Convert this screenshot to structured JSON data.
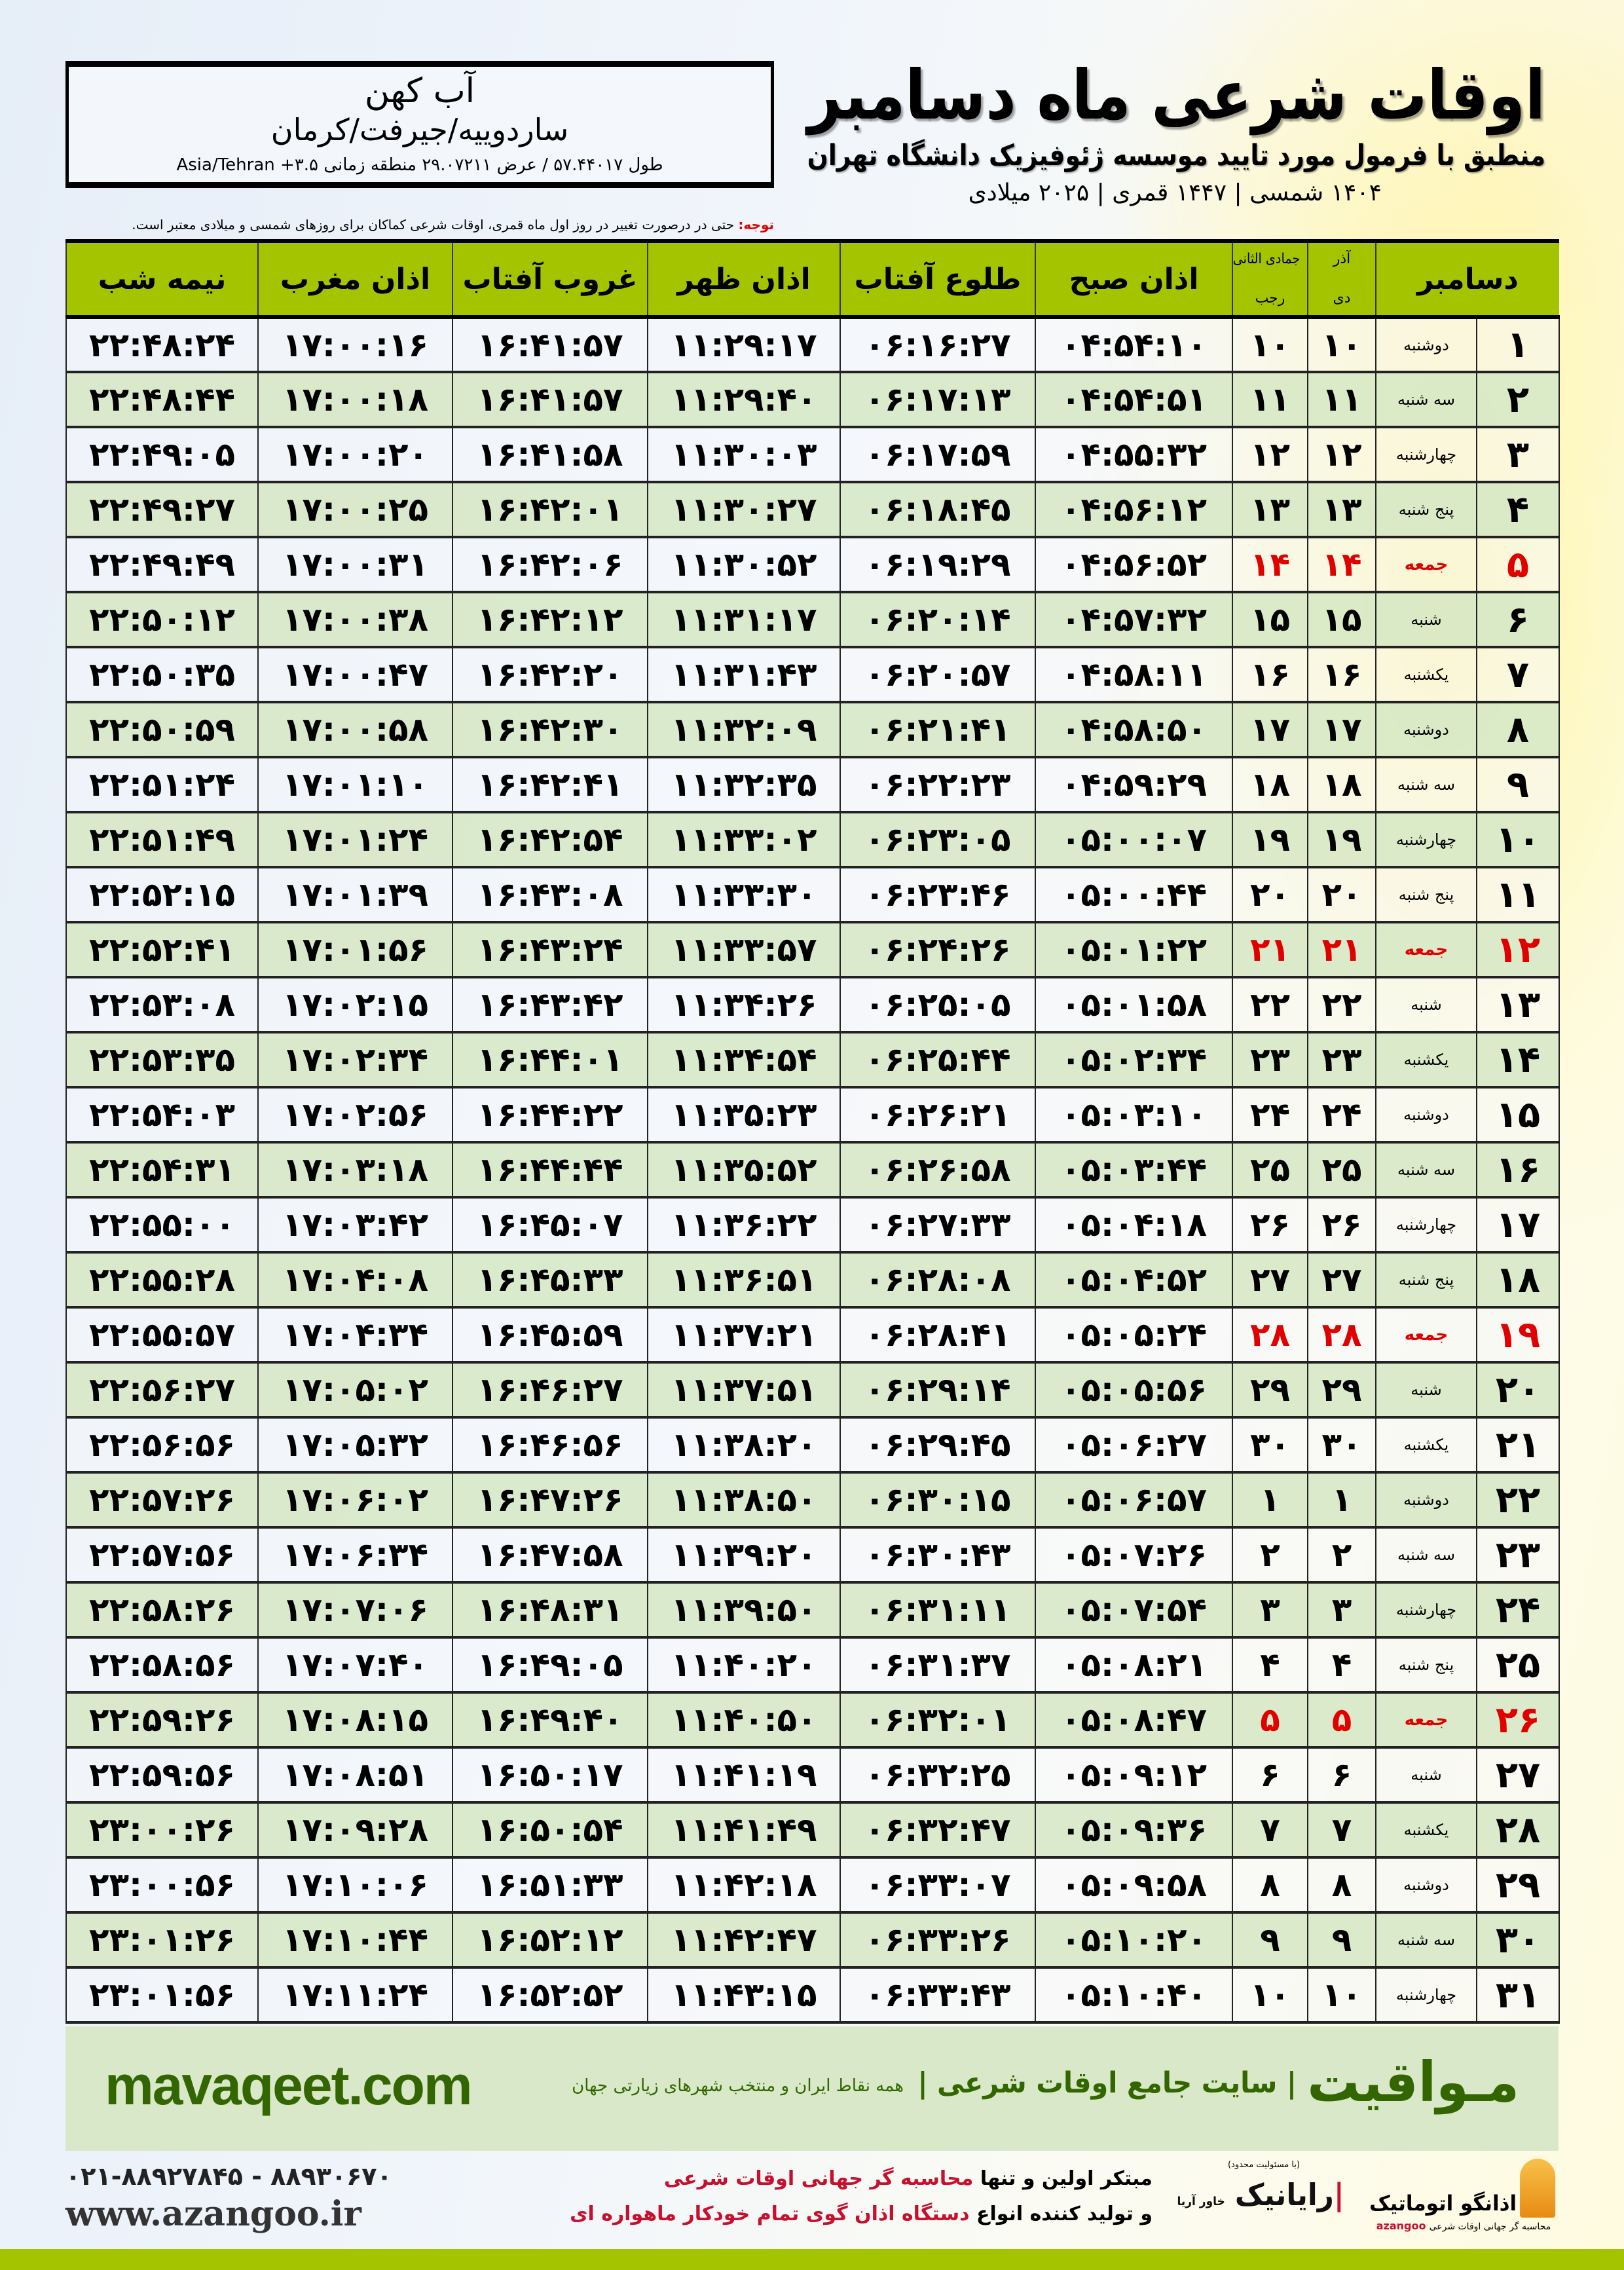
{
  "header": {
    "title": "اوقات شرعی ماه دسامبر",
    "subtitle": "منطبق با فرمول مورد تایید موسسه ژئوفیزیک دانشگاه تهران",
    "dateline": "۱۴۰۴ شمسی | ۱۴۴۷ قمری | ۲۰۲۵ میلادی"
  },
  "location": {
    "name": "آب کهن",
    "path": "ساردوییه/جیرفت/کرمان",
    "coords": "طول ۵۷.۴۴۰۱۷ / عرض ۲۹.۰۷۲۱۱ منطقه زمانی ۳.۵+ Asia/Tehran"
  },
  "note": {
    "label": "توجه:",
    "text": " حتی در درصورت تغییر در روز اول ماه قمری، اوقات شرعی کماکان برای روزهای شمسی و میلادی معتبر است."
  },
  "colors": {
    "header_green": "#a5c400",
    "row_green": "#d8e8c8",
    "friday": "#e00000",
    "brand_green": "#336600"
  },
  "table": {
    "columns": {
      "day": "دسامبر",
      "dey_top": "آذر",
      "dey": "دی",
      "rajab_top": "جمادی الثانی",
      "rajab": "رجب",
      "sobh": "اذان صبح",
      "tolu": "طلوع آفتاب",
      "zohr": "اذان ظهر",
      "ghoroob": "غروب آفتاب",
      "maghreb": "اذان مغرب",
      "nime": "نیمه شب"
    },
    "rows": [
      [
        "۱",
        "دوشنبه",
        "۱۰",
        "۱۰",
        "۰۴:۵۴:۱۰",
        "۰۶:۱۶:۲۷",
        "۱۱:۲۹:۱۷",
        "۱۶:۴۱:۵۷",
        "۱۷:۰۰:۱۶",
        "۲۲:۴۸:۲۴"
      ],
      [
        "۲",
        "سه شنبه",
        "۱۱",
        "۱۱",
        "۰۴:۵۴:۵۱",
        "۰۶:۱۷:۱۳",
        "۱۱:۲۹:۴۰",
        "۱۶:۴۱:۵۷",
        "۱۷:۰۰:۱۸",
        "۲۲:۴۸:۴۴"
      ],
      [
        "۳",
        "چهارشنبه",
        "۱۲",
        "۱۲",
        "۰۴:۵۵:۳۲",
        "۰۶:۱۷:۵۹",
        "۱۱:۳۰:۰۳",
        "۱۶:۴۱:۵۸",
        "۱۷:۰۰:۲۰",
        "۲۲:۴۹:۰۵"
      ],
      [
        "۴",
        "پنج شنبه",
        "۱۳",
        "۱۳",
        "۰۴:۵۶:۱۲",
        "۰۶:۱۸:۴۵",
        "۱۱:۳۰:۲۷",
        "۱۶:۴۲:۰۱",
        "۱۷:۰۰:۲۵",
        "۲۲:۴۹:۲۷"
      ],
      [
        "۵",
        "جمعه",
        "۱۴",
        "۱۴",
        "۰۴:۵۶:۵۲",
        "۰۶:۱۹:۲۹",
        "۱۱:۳۰:۵۲",
        "۱۶:۴۲:۰۶",
        "۱۷:۰۰:۳۱",
        "۲۲:۴۹:۴۹"
      ],
      [
        "۶",
        "شنبه",
        "۱۵",
        "۱۵",
        "۰۴:۵۷:۳۲",
        "۰۶:۲۰:۱۴",
        "۱۱:۳۱:۱۷",
        "۱۶:۴۲:۱۲",
        "۱۷:۰۰:۳۸",
        "۲۲:۵۰:۱۲"
      ],
      [
        "۷",
        "یکشنبه",
        "۱۶",
        "۱۶",
        "۰۴:۵۸:۱۱",
        "۰۶:۲۰:۵۷",
        "۱۱:۳۱:۴۳",
        "۱۶:۴۲:۲۰",
        "۱۷:۰۰:۴۷",
        "۲۲:۵۰:۳۵"
      ],
      [
        "۸",
        "دوشنبه",
        "۱۷",
        "۱۷",
        "۰۴:۵۸:۵۰",
        "۰۶:۲۱:۴۱",
        "۱۱:۳۲:۰۹",
        "۱۶:۴۲:۳۰",
        "۱۷:۰۰:۵۸",
        "۲۲:۵۰:۵۹"
      ],
      [
        "۹",
        "سه شنبه",
        "۱۸",
        "۱۸",
        "۰۴:۵۹:۲۹",
        "۰۶:۲۲:۲۳",
        "۱۱:۳۲:۳۵",
        "۱۶:۴۲:۴۱",
        "۱۷:۰۱:۱۰",
        "۲۲:۵۱:۲۴"
      ],
      [
        "۱۰",
        "چهارشنبه",
        "۱۹",
        "۱۹",
        "۰۵:۰۰:۰۷",
        "۰۶:۲۳:۰۵",
        "۱۱:۳۳:۰۲",
        "۱۶:۴۲:۵۴",
        "۱۷:۰۱:۲۴",
        "۲۲:۵۱:۴۹"
      ],
      [
        "۱۱",
        "پنج شنبه",
        "۲۰",
        "۲۰",
        "۰۵:۰۰:۴۴",
        "۰۶:۲۳:۴۶",
        "۱۱:۳۳:۳۰",
        "۱۶:۴۳:۰۸",
        "۱۷:۰۱:۳۹",
        "۲۲:۵۲:۱۵"
      ],
      [
        "۱۲",
        "جمعه",
        "۲۱",
        "۲۱",
        "۰۵:۰۱:۲۲",
        "۰۶:۲۴:۲۶",
        "۱۱:۳۳:۵۷",
        "۱۶:۴۳:۲۴",
        "۱۷:۰۱:۵۶",
        "۲۲:۵۲:۴۱"
      ],
      [
        "۱۳",
        "شنبه",
        "۲۲",
        "۲۲",
        "۰۵:۰۱:۵۸",
        "۰۶:۲۵:۰۵",
        "۱۱:۳۴:۲۶",
        "۱۶:۴۳:۴۲",
        "۱۷:۰۲:۱۵",
        "۲۲:۵۳:۰۸"
      ],
      [
        "۱۴",
        "یکشنبه",
        "۲۳",
        "۲۳",
        "۰۵:۰۲:۳۴",
        "۰۶:۲۵:۴۴",
        "۱۱:۳۴:۵۴",
        "۱۶:۴۴:۰۱",
        "۱۷:۰۲:۳۴",
        "۲۲:۵۳:۳۵"
      ],
      [
        "۱۵",
        "دوشنبه",
        "۲۴",
        "۲۴",
        "۰۵:۰۳:۱۰",
        "۰۶:۲۶:۲۱",
        "۱۱:۳۵:۲۳",
        "۱۶:۴۴:۲۲",
        "۱۷:۰۲:۵۶",
        "۲۲:۵۴:۰۳"
      ],
      [
        "۱۶",
        "سه شنبه",
        "۲۵",
        "۲۵",
        "۰۵:۰۳:۴۴",
        "۰۶:۲۶:۵۸",
        "۱۱:۳۵:۵۲",
        "۱۶:۴۴:۴۴",
        "۱۷:۰۳:۱۸",
        "۲۲:۵۴:۳۱"
      ],
      [
        "۱۷",
        "چهارشنبه",
        "۲۶",
        "۲۶",
        "۰۵:۰۴:۱۸",
        "۰۶:۲۷:۳۳",
        "۱۱:۳۶:۲۲",
        "۱۶:۴۵:۰۷",
        "۱۷:۰۳:۴۲",
        "۲۲:۵۵:۰۰"
      ],
      [
        "۱۸",
        "پنج شنبه",
        "۲۷",
        "۲۷",
        "۰۵:۰۴:۵۲",
        "۰۶:۲۸:۰۸",
        "۱۱:۳۶:۵۱",
        "۱۶:۴۵:۳۳",
        "۱۷:۰۴:۰۸",
        "۲۲:۵۵:۲۸"
      ],
      [
        "۱۹",
        "جمعه",
        "۲۸",
        "۲۸",
        "۰۵:۰۵:۲۴",
        "۰۶:۲۸:۴۱",
        "۱۱:۳۷:۲۱",
        "۱۶:۴۵:۵۹",
        "۱۷:۰۴:۳۴",
        "۲۲:۵۵:۵۷"
      ],
      [
        "۲۰",
        "شنبه",
        "۲۹",
        "۲۹",
        "۰۵:۰۵:۵۶",
        "۰۶:۲۹:۱۴",
        "۱۱:۳۷:۵۱",
        "۱۶:۴۶:۲۷",
        "۱۷:۰۵:۰۲",
        "۲۲:۵۶:۲۷"
      ],
      [
        "۲۱",
        "یکشنبه",
        "۳۰",
        "۳۰",
        "۰۵:۰۶:۲۷",
        "۰۶:۲۹:۴۵",
        "۱۱:۳۸:۲۰",
        "۱۶:۴۶:۵۶",
        "۱۷:۰۵:۳۲",
        "۲۲:۵۶:۵۶"
      ],
      [
        "۲۲",
        "دوشنبه",
        "۱",
        "۱",
        "۰۵:۰۶:۵۷",
        "۰۶:۳۰:۱۵",
        "۱۱:۳۸:۵۰",
        "۱۶:۴۷:۲۶",
        "۱۷:۰۶:۰۲",
        "۲۲:۵۷:۲۶"
      ],
      [
        "۲۳",
        "سه شنبه",
        "۲",
        "۲",
        "۰۵:۰۷:۲۶",
        "۰۶:۳۰:۴۳",
        "۱۱:۳۹:۲۰",
        "۱۶:۴۷:۵۸",
        "۱۷:۰۶:۳۴",
        "۲۲:۵۷:۵۶"
      ],
      [
        "۲۴",
        "چهارشنبه",
        "۳",
        "۳",
        "۰۵:۰۷:۵۴",
        "۰۶:۳۱:۱۱",
        "۱۱:۳۹:۵۰",
        "۱۶:۴۸:۳۱",
        "۱۷:۰۷:۰۶",
        "۲۲:۵۸:۲۶"
      ],
      [
        "۲۵",
        "پنج شنبه",
        "۴",
        "۴",
        "۰۵:۰۸:۲۱",
        "۰۶:۳۱:۳۷",
        "۱۱:۴۰:۲۰",
        "۱۶:۴۹:۰۵",
        "۱۷:۰۷:۴۰",
        "۲۲:۵۸:۵۶"
      ],
      [
        "۲۶",
        "جمعه",
        "۵",
        "۵",
        "۰۵:۰۸:۴۷",
        "۰۶:۳۲:۰۱",
        "۱۱:۴۰:۵۰",
        "۱۶:۴۹:۴۰",
        "۱۷:۰۸:۱۵",
        "۲۲:۵۹:۲۶"
      ],
      [
        "۲۷",
        "شنبه",
        "۶",
        "۶",
        "۰۵:۰۹:۱۲",
        "۰۶:۳۲:۲۵",
        "۱۱:۴۱:۱۹",
        "۱۶:۵۰:۱۷",
        "۱۷:۰۸:۵۱",
        "۲۲:۵۹:۵۶"
      ],
      [
        "۲۸",
        "یکشنبه",
        "۷",
        "۷",
        "۰۵:۰۹:۳۶",
        "۰۶:۳۲:۴۷",
        "۱۱:۴۱:۴۹",
        "۱۶:۵۰:۵۴",
        "۱۷:۰۹:۲۸",
        "۲۳:۰۰:۲۶"
      ],
      [
        "۲۹",
        "دوشنبه",
        "۸",
        "۸",
        "۰۵:۰۹:۵۸",
        "۰۶:۳۳:۰۷",
        "۱۱:۴۲:۱۸",
        "۱۶:۵۱:۳۳",
        "۱۷:۱۰:۰۶",
        "۲۳:۰۰:۵۶"
      ],
      [
        "۳۰",
        "سه شنبه",
        "۹",
        "۹",
        "۰۵:۱۰:۲۰",
        "۰۶:۳۳:۲۶",
        "۱۱:۴۲:۴۷",
        "۱۶:۵۲:۱۲",
        "۱۷:۱۰:۴۴",
        "۲۳:۰۱:۲۶"
      ],
      [
        "۳۱",
        "چهارشنبه",
        "۱۰",
        "۱۰",
        "۰۵:۱۰:۴۰",
        "۰۶:۳۳:۴۳",
        "۱۱:۴۳:۱۵",
        "۱۶:۵۲:۵۲",
        "۱۷:۱۱:۲۴",
        "۲۳:۰۱:۵۶"
      ]
    ]
  },
  "banner": {
    "brand": "مـواقیت",
    "tagline": "| سایت جامع اوقات شرعی |",
    "sub": "همه نقاط ایران و منتخب شهرهای زیارتی جهان",
    "site": "mavaqeet.com"
  },
  "footer": {
    "phone": "۰۲۱-۸۸۹۲۷۸۴۵ - ۸۸۹۳۰۶۷۰",
    "web": "www.azangoo.ir",
    "line1_a": "مبتکر اولین و تنها ",
    "line1_b": "محاسبه گر جهانی اوقات شرعی",
    "line2_a": "و تولید کننده انواع ",
    "line2_b": "دستگاه اذان گوی تمام خودکار ماهواره ای",
    "rayanik_small": "(با مسئولیت محدود)",
    "rayanik_name": "رایانیک",
    "rayanik_side": "خاور آریا",
    "azangoo_name": "اذانگو اتوماتیک",
    "azangoo_sub": "محاسبه گر جهانی اوقات شرعی",
    "azangoo_latin": "azangoo"
  }
}
